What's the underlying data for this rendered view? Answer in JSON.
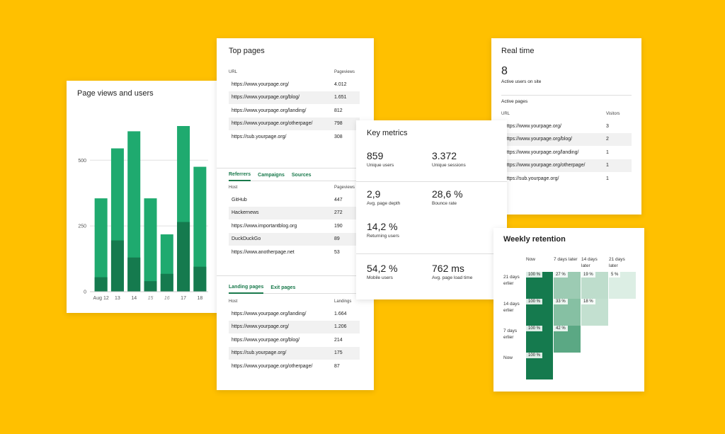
{
  "page_views": {
    "title": "Page views and users",
    "y_ticks": [
      "500",
      "250",
      "0"
    ],
    "x_labels": [
      "Aug 12",
      "13",
      "14",
      "15",
      "16",
      "17",
      "18"
    ],
    "colors": {
      "views": "#1FAA6F",
      "users": "#157A4E",
      "grid": "#e0e0e0"
    },
    "chart_data": {
      "type": "bar",
      "categories": [
        "Aug 12",
        "13",
        "14",
        "15",
        "16",
        "17",
        "18"
      ],
      "series": [
        {
          "values": [
            355,
            545,
            610,
            355,
            218,
            630,
            475
          ]
        },
        {
          "values": [
            55,
            195,
            130,
            40,
            68,
            265,
            95
          ]
        }
      ],
      "ylim": [
        0,
        700
      ]
    }
  },
  "top_pages": {
    "title": "Top pages",
    "headers": {
      "url": "URL",
      "value": "Pageviews"
    },
    "rows": [
      {
        "url": "https://www.yourpage.org/",
        "value": "4.012"
      },
      {
        "url": "https://www.yourpage.org/blog/",
        "value": "1.651"
      },
      {
        "url": "https://www.yourpage.org/landing/",
        "value": "812"
      },
      {
        "url": "https://www.yourpage.org/otherpage/",
        "value": "798"
      },
      {
        "url": "https://sub.yourpage.org/",
        "value": "308"
      }
    ],
    "ref_tabs": [
      "Referrers",
      "Campaigns",
      "Sources"
    ],
    "ref_headers": {
      "url": "Host",
      "value": "Pageviews"
    },
    "ref_rows": [
      {
        "url": "GitHub",
        "value": "447"
      },
      {
        "url": "Hackernews",
        "value": "272"
      },
      {
        "url": "https://www.importantblog.org",
        "value": "190"
      },
      {
        "url": "DuckDuckGo",
        "value": "89"
      },
      {
        "url": "https://www.anotherpage.net",
        "value": "53"
      }
    ],
    "land_tabs": [
      "Landing pages",
      "Exit pages"
    ],
    "land_headers": {
      "url": "Host",
      "value": "Landings"
    },
    "land_rows": [
      {
        "url": "https://www.yourpage.org/landing/",
        "value": "1.664"
      },
      {
        "url": "https://www.yourpage.org/",
        "value": "1.206"
      },
      {
        "url": "https://www.yourpage.org/blog/",
        "value": "214"
      },
      {
        "url": "https://sub.yourpage.org/",
        "value": "175"
      },
      {
        "url": "https://www.yourpage.org/otherpage/",
        "value": "87"
      }
    ]
  },
  "key_metrics": {
    "title": "Key metrics",
    "items": [
      {
        "value": "859",
        "label": "Unique users"
      },
      {
        "value": "3.372",
        "label": "Unique sessions"
      },
      {
        "value": "2,9",
        "label": "Avg. page depth"
      },
      {
        "value": "28,6 %",
        "label": "Bounce rate"
      },
      {
        "value": "14,2 %",
        "label": "Returning users"
      },
      {
        "value": "54,2 %",
        "label": "Mobile users"
      },
      {
        "value": "762 ms",
        "label": "Avg. page load time"
      }
    ]
  },
  "real_time": {
    "title": "Real time",
    "count": "8",
    "count_label": "Active users on site",
    "section": "Active pages",
    "headers": {
      "url": "URL",
      "value": "Visitors"
    },
    "rows": [
      {
        "url": "https://www.yourpage.org/",
        "value": "3"
      },
      {
        "url": "https://www.yourpage.org/blog/",
        "value": "2"
      },
      {
        "url": "https://www.yourpage.org/landing/",
        "value": "1"
      },
      {
        "url": "https://www.yourpage.org/otherpage/",
        "value": "1"
      },
      {
        "url": "https://sub.yourpage.org/",
        "value": "1"
      }
    ]
  },
  "retention": {
    "title": "Weekly retention",
    "col_labels": [
      "Now",
      "7 days later",
      "14 days later",
      "21 days later"
    ],
    "row_labels": [
      "21 days erlier",
      "14 days erlier",
      "7 days erlier",
      "Now"
    ],
    "cells": [
      [
        "100 %",
        "27 %",
        "19 %",
        "5 %"
      ],
      [
        "100 %",
        "33 %",
        "18 %"
      ],
      [
        "100 %",
        "42 %"
      ],
      [
        "100 %"
      ]
    ],
    "colors": {
      "c100": "#157A4E",
      "c42": "#5BA884",
      "c33": "#86C0A3",
      "c27": "#9CCBB3",
      "c19": "#BEDDCC",
      "c18": "#C3E0D0",
      "c5": "#DCEEE4"
    }
  }
}
